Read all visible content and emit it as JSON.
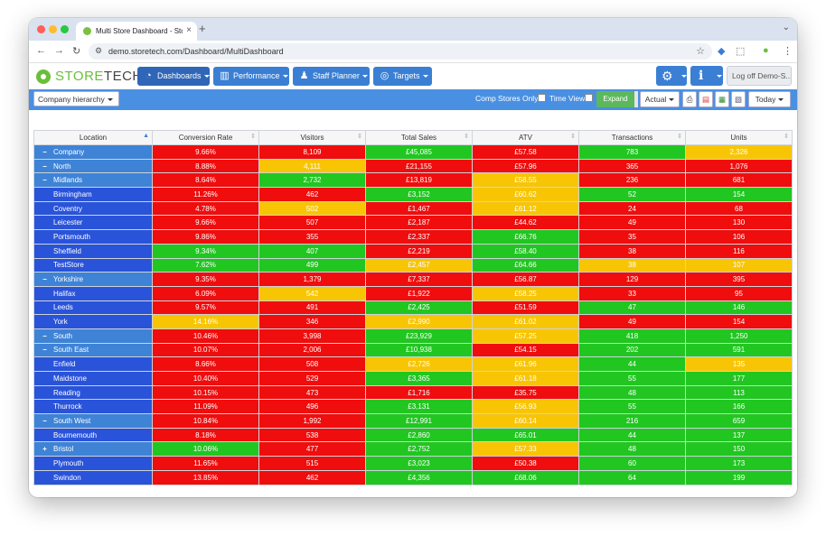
{
  "browser": {
    "tab_title": "Multi Store Dashboard - Store",
    "url": "demo.storetech.com/Dashboard/MultiDashboard"
  },
  "header": {
    "logo_prefix": "STORE",
    "logo_suffix": "TECH",
    "nav": [
      "Dashboards",
      "Performance",
      "Staff Planner",
      "Targets"
    ],
    "logoff": "Log off Demo-S..."
  },
  "toolbar": {
    "hierarchy": "Company hierarchy",
    "comp_stores": "Comp Stores Only",
    "time_view": "Time View",
    "expand": "Expand",
    "mode": "Actual",
    "period": "Today"
  },
  "colors": {
    "red": "#ef0d0d",
    "amber": "#f8c504",
    "green": "#21c621",
    "location": "#2953d9",
    "group": "#3e83d6"
  },
  "table": {
    "columns": [
      "Location",
      "Conversion Rate",
      "Visitors",
      "Total Sales",
      "ATV",
      "Transactions",
      "Units"
    ],
    "rows": [
      {
        "location": "Company",
        "toggle": "−",
        "group": true,
        "cells": [
          [
            "9.66%",
            "r"
          ],
          [
            "8,109",
            "r"
          ],
          [
            "£45,085",
            "g"
          ],
          [
            "£57.58",
            "r"
          ],
          [
            "783",
            "g"
          ],
          [
            "2,326",
            "a"
          ]
        ]
      },
      {
        "location": "North",
        "toggle": "−",
        "group": true,
        "cells": [
          [
            "8.88%",
            "r"
          ],
          [
            "4,111",
            "a"
          ],
          [
            "£21,155",
            "r"
          ],
          [
            "£57.96",
            "r"
          ],
          [
            "365",
            "r"
          ],
          [
            "1,076",
            "r"
          ]
        ]
      },
      {
        "location": "Midlands",
        "toggle": "−",
        "group": true,
        "cells": [
          [
            "8.64%",
            "r"
          ],
          [
            "2,732",
            "g"
          ],
          [
            "£13,819",
            "r"
          ],
          [
            "£58.55",
            "a"
          ],
          [
            "236",
            "r"
          ],
          [
            "681",
            "r"
          ]
        ]
      },
      {
        "location": "Birmingham",
        "toggle": "",
        "group": false,
        "cells": [
          [
            "11.26%",
            "r"
          ],
          [
            "462",
            "r"
          ],
          [
            "£3,152",
            "g"
          ],
          [
            "£60.62",
            "a"
          ],
          [
            "52",
            "g"
          ],
          [
            "154",
            "g"
          ]
        ]
      },
      {
        "location": "Coventry",
        "toggle": "",
        "group": false,
        "cells": [
          [
            "4.78%",
            "r"
          ],
          [
            "502",
            "a"
          ],
          [
            "£1,467",
            "r"
          ],
          [
            "£61.12",
            "a"
          ],
          [
            "24",
            "r"
          ],
          [
            "68",
            "r"
          ]
        ]
      },
      {
        "location": "Leicester",
        "toggle": "",
        "group": false,
        "cells": [
          [
            "9.66%",
            "r"
          ],
          [
            "507",
            "r"
          ],
          [
            "£2,187",
            "r"
          ],
          [
            "£44.62",
            "r"
          ],
          [
            "49",
            "r"
          ],
          [
            "130",
            "r"
          ]
        ]
      },
      {
        "location": "Portsmouth",
        "toggle": "",
        "group": false,
        "cells": [
          [
            "9.86%",
            "r"
          ],
          [
            "355",
            "r"
          ],
          [
            "£2,337",
            "r"
          ],
          [
            "£66.76",
            "g"
          ],
          [
            "35",
            "r"
          ],
          [
            "106",
            "r"
          ]
        ]
      },
      {
        "location": "Sheffield",
        "toggle": "",
        "group": false,
        "cells": [
          [
            "9.34%",
            "g"
          ],
          [
            "407",
            "g"
          ],
          [
            "£2,219",
            "r"
          ],
          [
            "£58.40",
            "g"
          ],
          [
            "38",
            "r"
          ],
          [
            "116",
            "r"
          ]
        ]
      },
      {
        "location": "TestStore",
        "toggle": "",
        "group": false,
        "cells": [
          [
            "7.62%",
            "g"
          ],
          [
            "499",
            "g"
          ],
          [
            "£2,457",
            "a"
          ],
          [
            "£64.66",
            "g"
          ],
          [
            "38",
            "a"
          ],
          [
            "107",
            "a"
          ]
        ]
      },
      {
        "location": "Yorkshire",
        "toggle": "−",
        "group": true,
        "cells": [
          [
            "9.35%",
            "r"
          ],
          [
            "1,379",
            "r"
          ],
          [
            "£7,337",
            "r"
          ],
          [
            "£56.87",
            "r"
          ],
          [
            "129",
            "r"
          ],
          [
            "395",
            "r"
          ]
        ]
      },
      {
        "location": "Halifax",
        "toggle": "",
        "group": false,
        "cells": [
          [
            "6.09%",
            "r"
          ],
          [
            "542",
            "a"
          ],
          [
            "£1,922",
            "r"
          ],
          [
            "£58.25",
            "a"
          ],
          [
            "33",
            "r"
          ],
          [
            "95",
            "r"
          ]
        ]
      },
      {
        "location": "Leeds",
        "toggle": "",
        "group": false,
        "cells": [
          [
            "9.57%",
            "r"
          ],
          [
            "491",
            "r"
          ],
          [
            "£2,425",
            "g"
          ],
          [
            "£51.59",
            "r"
          ],
          [
            "47",
            "g"
          ],
          [
            "146",
            "g"
          ]
        ]
      },
      {
        "location": "York",
        "toggle": "",
        "group": false,
        "cells": [
          [
            "14.16%",
            "a"
          ],
          [
            "346",
            "r"
          ],
          [
            "£2,990",
            "a"
          ],
          [
            "£61.02",
            "a"
          ],
          [
            "49",
            "r"
          ],
          [
            "154",
            "r"
          ]
        ]
      },
      {
        "location": "South",
        "toggle": "−",
        "group": true,
        "cells": [
          [
            "10.46%",
            "r"
          ],
          [
            "3,998",
            "r"
          ],
          [
            "£23,929",
            "g"
          ],
          [
            "£57.25",
            "a"
          ],
          [
            "418",
            "g"
          ],
          [
            "1,250",
            "g"
          ]
        ]
      },
      {
        "location": "South East",
        "toggle": "−",
        "group": true,
        "cells": [
          [
            "10.07%",
            "r"
          ],
          [
            "2,006",
            "r"
          ],
          [
            "£10,938",
            "g"
          ],
          [
            "£54.15",
            "r"
          ],
          [
            "202",
            "g"
          ],
          [
            "591",
            "g"
          ]
        ]
      },
      {
        "location": "Enfield",
        "toggle": "",
        "group": false,
        "cells": [
          [
            "8.66%",
            "r"
          ],
          [
            "508",
            "r"
          ],
          [
            "£2,726",
            "a"
          ],
          [
            "£61.96",
            "a"
          ],
          [
            "44",
            "g"
          ],
          [
            "135",
            "a"
          ]
        ]
      },
      {
        "location": "Maidstone",
        "toggle": "",
        "group": false,
        "cells": [
          [
            "10.40%",
            "r"
          ],
          [
            "529",
            "r"
          ],
          [
            "£3,365",
            "g"
          ],
          [
            "£61.18",
            "a"
          ],
          [
            "55",
            "g"
          ],
          [
            "177",
            "g"
          ]
        ]
      },
      {
        "location": "Reading",
        "toggle": "",
        "group": false,
        "cells": [
          [
            "10.15%",
            "r"
          ],
          [
            "473",
            "r"
          ],
          [
            "£1,716",
            "r"
          ],
          [
            "£35.75",
            "r"
          ],
          [
            "48",
            "g"
          ],
          [
            "113",
            "g"
          ]
        ]
      },
      {
        "location": "Thurrock",
        "toggle": "",
        "group": false,
        "cells": [
          [
            "11.09%",
            "r"
          ],
          [
            "496",
            "r"
          ],
          [
            "£3,131",
            "g"
          ],
          [
            "£56.93",
            "a"
          ],
          [
            "55",
            "g"
          ],
          [
            "166",
            "g"
          ]
        ]
      },
      {
        "location": "South West",
        "toggle": "−",
        "group": true,
        "cells": [
          [
            "10.84%",
            "r"
          ],
          [
            "1,992",
            "r"
          ],
          [
            "£12,991",
            "g"
          ],
          [
            "£60.14",
            "a"
          ],
          [
            "216",
            "g"
          ],
          [
            "659",
            "g"
          ]
        ]
      },
      {
        "location": "Bournemouth",
        "toggle": "",
        "group": false,
        "cells": [
          [
            "8.18%",
            "r"
          ],
          [
            "538",
            "r"
          ],
          [
            "£2,860",
            "g"
          ],
          [
            "£65.01",
            "g"
          ],
          [
            "44",
            "g"
          ],
          [
            "137",
            "g"
          ]
        ]
      },
      {
        "location": "Bristol",
        "toggle": "+",
        "group": true,
        "cells": [
          [
            "10.06%",
            "g"
          ],
          [
            "477",
            "r"
          ],
          [
            "£2,752",
            "g"
          ],
          [
            "£57.33",
            "a"
          ],
          [
            "48",
            "g"
          ],
          [
            "150",
            "g"
          ]
        ]
      },
      {
        "location": "Plymouth",
        "toggle": "",
        "group": false,
        "cells": [
          [
            "11.65%",
            "r"
          ],
          [
            "515",
            "r"
          ],
          [
            "£3,023",
            "g"
          ],
          [
            "£50.38",
            "r"
          ],
          [
            "60",
            "g"
          ],
          [
            "173",
            "g"
          ]
        ]
      },
      {
        "location": "Swindon",
        "toggle": "",
        "group": false,
        "cells": [
          [
            "13.85%",
            "r"
          ],
          [
            "462",
            "r"
          ],
          [
            "£4,356",
            "g"
          ],
          [
            "£68.06",
            "g"
          ],
          [
            "64",
            "g"
          ],
          [
            "199",
            "g"
          ]
        ]
      }
    ]
  }
}
